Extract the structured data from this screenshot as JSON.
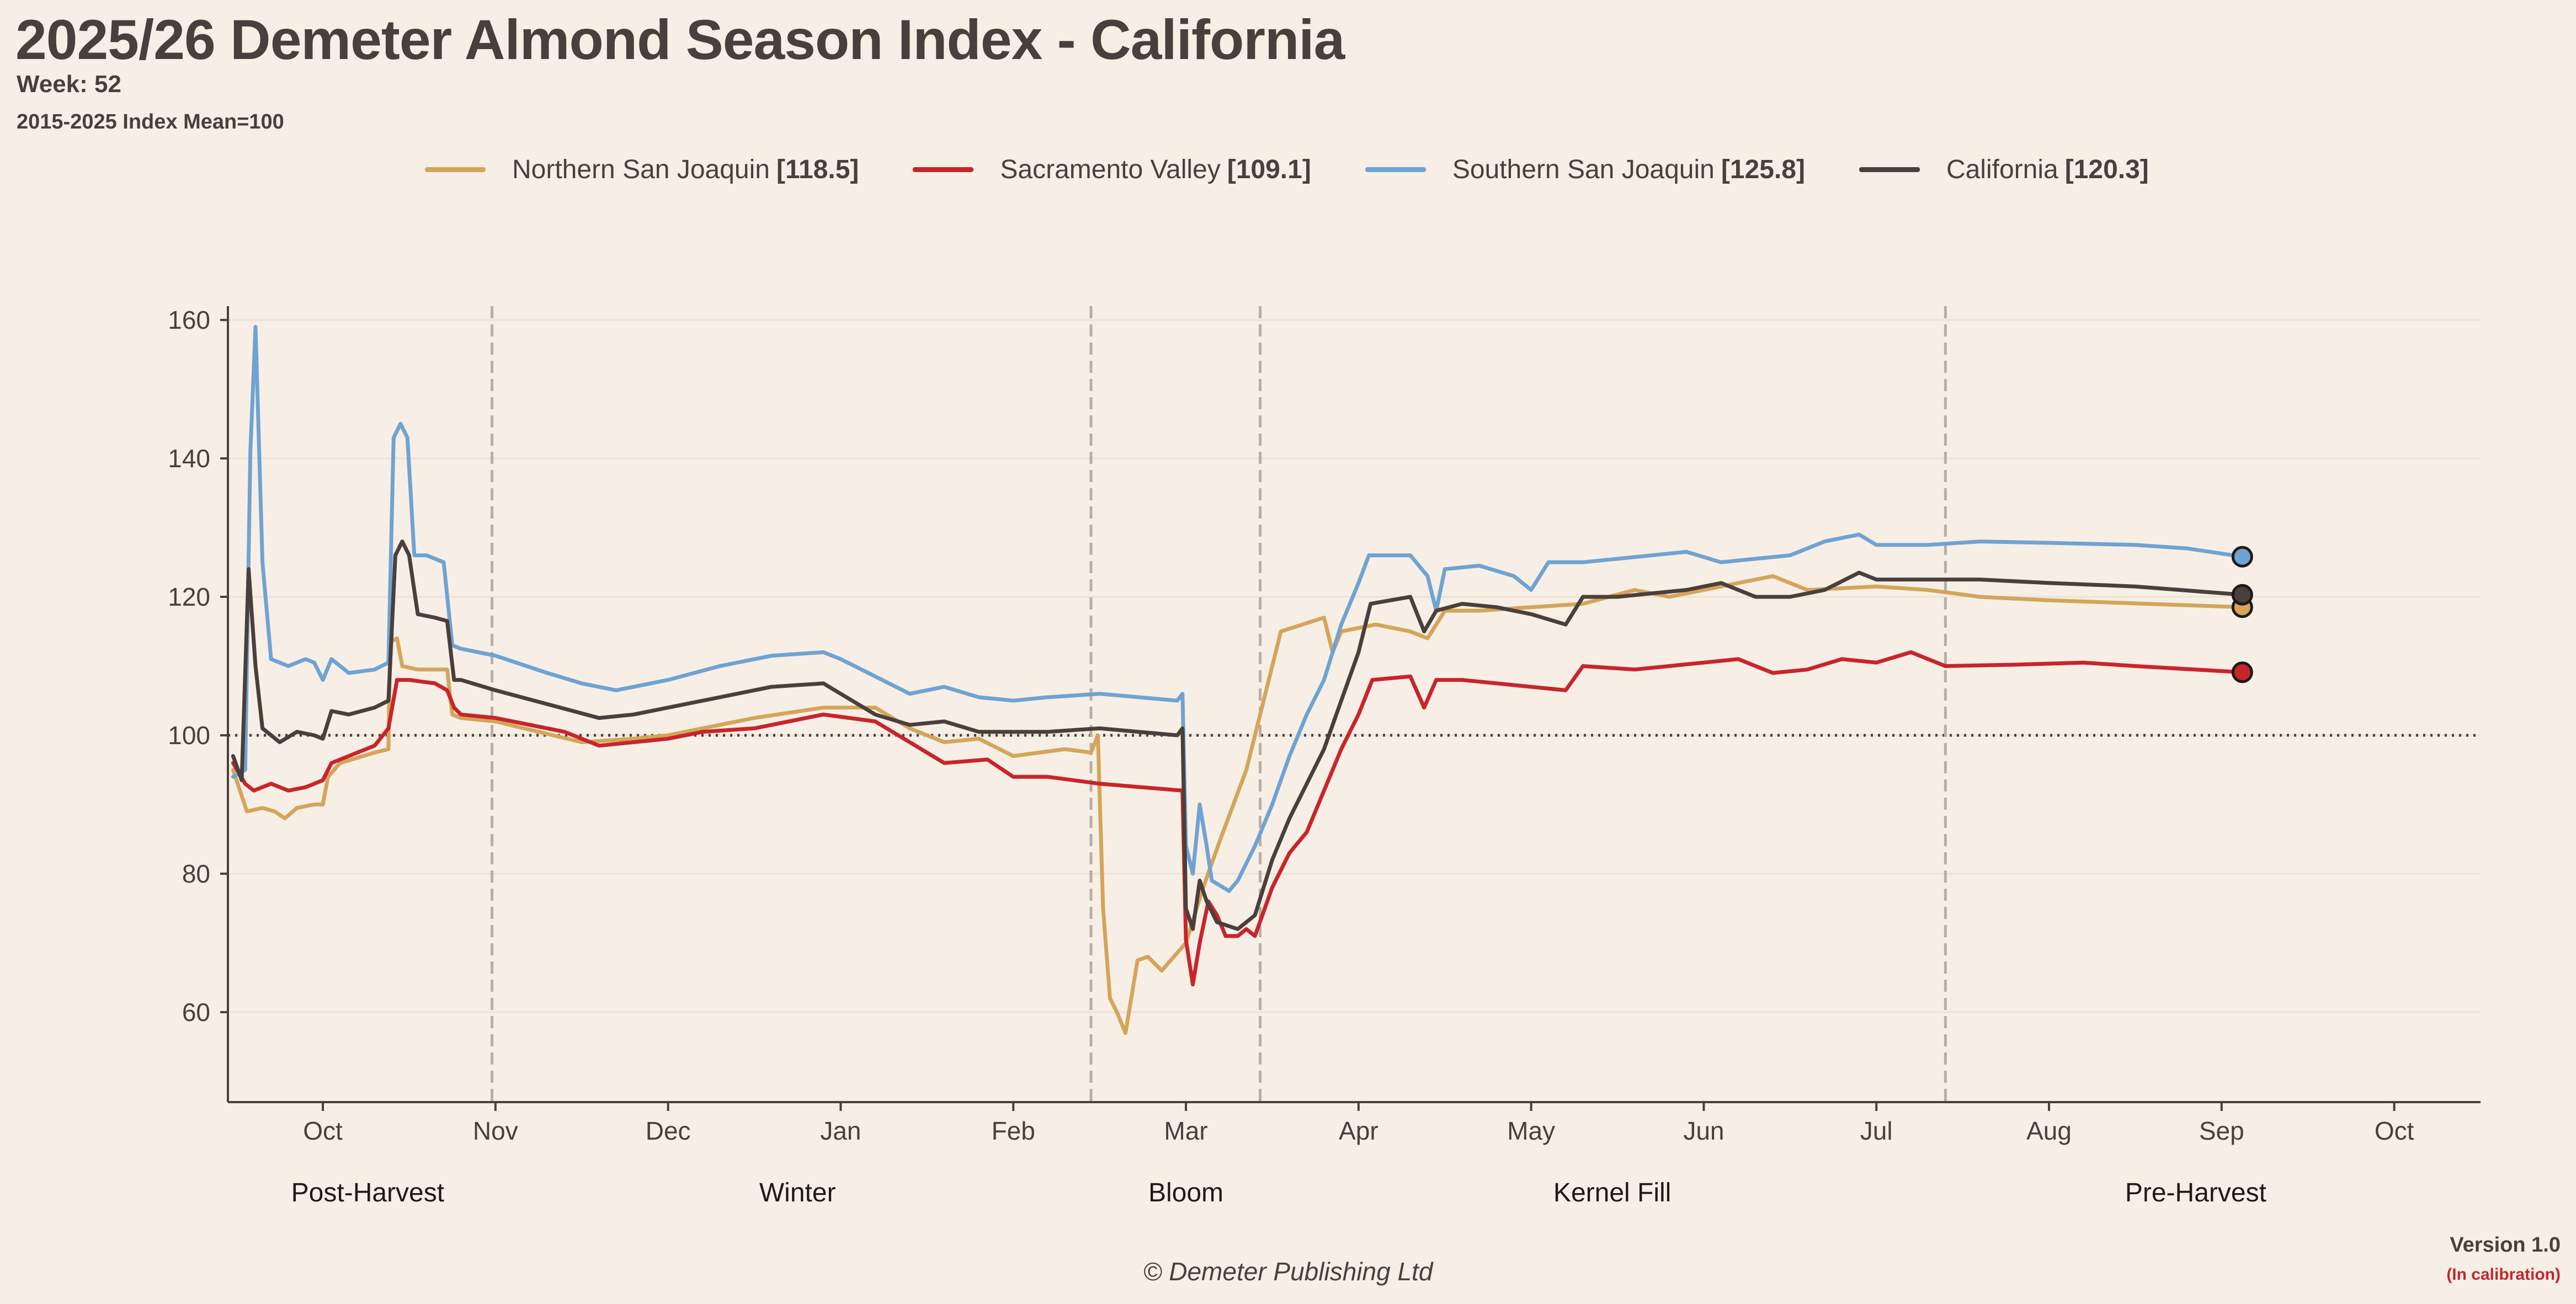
{
  "header": {
    "title": "2025/26 Demeter Almond Season Index - California",
    "week": "Week: 52",
    "baseline": "2015-2025 Index Mean=100"
  },
  "footer": {
    "copyright": "© Demeter Publishing Ltd",
    "version": "Version 1.0",
    "status": "(In calibration)"
  },
  "legend": [
    {
      "label": "Northern San Joaquin",
      "value": "[118.5]",
      "color": "#d4a55a"
    },
    {
      "label": "Sacramento Valley",
      "value": "[109.1]",
      "color": "#c8252b"
    },
    {
      "label": "Southern San Joaquin",
      "value": "[125.8]",
      "color": "#6fa3d3"
    },
    {
      "label": "California",
      "value": "[120.3]",
      "color": "#4a3f3c"
    }
  ],
  "chart_data": {
    "type": "line",
    "ylim": [
      47,
      162
    ],
    "y_ticks": [
      60,
      80,
      100,
      120,
      140,
      160
    ],
    "x_domain": [
      -0.55,
      12.5
    ],
    "x_tick_labels": [
      "Oct",
      "Nov",
      "Dec",
      "Jan",
      "Feb",
      "Mar",
      "Apr",
      "May",
      "Jun",
      "Jul",
      "Aug",
      "Sep",
      "Oct"
    ],
    "reference_line": 100,
    "phase_boundaries": [
      0.98,
      4.45,
      5.43,
      9.4
    ],
    "phases": [
      {
        "label": "Post-Harvest",
        "center": 0.26
      },
      {
        "label": "Winter",
        "center": 2.75
      },
      {
        "label": "Bloom",
        "center": 5.0
      },
      {
        "label": "Kernel Fill",
        "center": 7.47
      },
      {
        "label": "Pre-Harvest",
        "center": 10.85
      }
    ],
    "grid": true,
    "series": [
      {
        "name": "Northern San Joaquin",
        "color": "#d4a55a",
        "points": [
          [
            -0.52,
            95
          ],
          [
            -0.44,
            89
          ],
          [
            -0.35,
            89.5
          ],
          [
            -0.28,
            89
          ],
          [
            -0.22,
            88
          ],
          [
            -0.15,
            89.5
          ],
          [
            -0.05,
            90
          ],
          [
            0.0,
            90
          ],
          [
            0.03,
            94
          ],
          [
            0.1,
            96
          ],
          [
            0.3,
            97.5
          ],
          [
            0.38,
            98
          ],
          [
            0.39,
            113.5
          ],
          [
            0.43,
            114
          ],
          [
            0.46,
            110
          ],
          [
            0.55,
            109.5
          ],
          [
            0.65,
            109.5
          ],
          [
            0.72,
            109.5
          ],
          [
            0.75,
            103
          ],
          [
            0.8,
            102.5
          ],
          [
            1.0,
            102
          ],
          [
            1.5,
            99
          ],
          [
            1.8,
            99.5
          ],
          [
            2.0,
            100
          ],
          [
            2.2,
            101
          ],
          [
            2.5,
            102.5
          ],
          [
            2.9,
            104
          ],
          [
            3.2,
            104
          ],
          [
            3.4,
            101
          ],
          [
            3.6,
            99
          ],
          [
            3.8,
            99.5
          ],
          [
            4.0,
            97
          ],
          [
            4.3,
            98
          ],
          [
            4.45,
            97.5
          ],
          [
            4.49,
            100
          ],
          [
            4.52,
            75
          ],
          [
            4.56,
            62
          ],
          [
            4.6,
            60
          ],
          [
            4.65,
            57
          ],
          [
            4.72,
            67.5
          ],
          [
            4.78,
            68
          ],
          [
            4.86,
            66
          ],
          [
            5.0,
            70
          ],
          [
            5.1,
            78
          ],
          [
            5.2,
            85
          ],
          [
            5.35,
            95
          ],
          [
            5.46,
            106
          ],
          [
            5.55,
            115
          ],
          [
            5.8,
            117
          ],
          [
            5.85,
            112
          ],
          [
            5.9,
            115
          ],
          [
            6.1,
            116
          ],
          [
            6.3,
            115
          ],
          [
            6.4,
            114
          ],
          [
            6.5,
            118
          ],
          [
            6.7,
            118
          ],
          [
            7.0,
            118.5
          ],
          [
            7.3,
            119
          ],
          [
            7.6,
            121
          ],
          [
            7.8,
            120
          ],
          [
            8.0,
            121
          ],
          [
            8.2,
            122
          ],
          [
            8.4,
            123
          ],
          [
            8.6,
            121
          ],
          [
            9.0,
            121.5
          ],
          [
            9.3,
            121
          ],
          [
            9.6,
            120
          ],
          [
            10.0,
            119.5
          ],
          [
            11.12,
            118.5
          ]
        ]
      },
      {
        "name": "Sacramento Valley",
        "color": "#c8252b",
        "points": [
          [
            -0.52,
            96
          ],
          [
            -0.45,
            93
          ],
          [
            -0.4,
            92
          ],
          [
            -0.3,
            93
          ],
          [
            -0.2,
            92
          ],
          [
            -0.1,
            92.5
          ],
          [
            0.0,
            93.5
          ],
          [
            0.05,
            96
          ],
          [
            0.15,
            97
          ],
          [
            0.3,
            98.5
          ],
          [
            0.38,
            101
          ],
          [
            0.43,
            108
          ],
          [
            0.5,
            108
          ],
          [
            0.65,
            107.5
          ],
          [
            0.72,
            106.5
          ],
          [
            0.76,
            104
          ],
          [
            0.8,
            103
          ],
          [
            1.0,
            102.5
          ],
          [
            1.4,
            100.5
          ],
          [
            1.6,
            98.5
          ],
          [
            1.8,
            99
          ],
          [
            2.0,
            99.5
          ],
          [
            2.2,
            100.5
          ],
          [
            2.5,
            101
          ],
          [
            2.9,
            103
          ],
          [
            3.2,
            102
          ],
          [
            3.4,
            99
          ],
          [
            3.6,
            96
          ],
          [
            3.85,
            96.5
          ],
          [
            4.0,
            94
          ],
          [
            4.2,
            94
          ],
          [
            4.5,
            93
          ],
          [
            4.98,
            92
          ],
          [
            5.0,
            70.5
          ],
          [
            5.04,
            64
          ],
          [
            5.08,
            70
          ],
          [
            5.13,
            76
          ],
          [
            5.18,
            74
          ],
          [
            5.23,
            71
          ],
          [
            5.3,
            71
          ],
          [
            5.35,
            72
          ],
          [
            5.4,
            71
          ],
          [
            5.5,
            78
          ],
          [
            5.6,
            83
          ],
          [
            5.7,
            86
          ],
          [
            5.8,
            92
          ],
          [
            5.9,
            98
          ],
          [
            6.0,
            103
          ],
          [
            6.08,
            108
          ],
          [
            6.3,
            108.5
          ],
          [
            6.38,
            104
          ],
          [
            6.45,
            108
          ],
          [
            6.6,
            108
          ],
          [
            6.8,
            107.5
          ],
          [
            7.0,
            107
          ],
          [
            7.2,
            106.5
          ],
          [
            7.3,
            110
          ],
          [
            7.6,
            109.5
          ],
          [
            8.0,
            110.5
          ],
          [
            8.2,
            111
          ],
          [
            8.4,
            109
          ],
          [
            8.6,
            109.5
          ],
          [
            8.8,
            111
          ],
          [
            9.0,
            110.5
          ],
          [
            9.2,
            112
          ],
          [
            9.4,
            110
          ],
          [
            9.8,
            110.2
          ],
          [
            10.2,
            110.5
          ],
          [
            10.5,
            110
          ],
          [
            11.12,
            109.1
          ]
        ]
      },
      {
        "name": "Southern San Joaquin",
        "color": "#6fa3d3",
        "points": [
          [
            -0.52,
            94
          ],
          [
            -0.45,
            95
          ],
          [
            -0.42,
            141
          ],
          [
            -0.39,
            159
          ],
          [
            -0.35,
            125
          ],
          [
            -0.3,
            111
          ],
          [
            -0.2,
            110
          ],
          [
            -0.1,
            111
          ],
          [
            -0.05,
            110.5
          ],
          [
            0.0,
            108
          ],
          [
            0.05,
            111
          ],
          [
            0.15,
            109
          ],
          [
            0.3,
            109.5
          ],
          [
            0.38,
            110.5
          ],
          [
            0.41,
            143
          ],
          [
            0.45,
            145
          ],
          [
            0.49,
            143
          ],
          [
            0.53,
            126
          ],
          [
            0.6,
            126
          ],
          [
            0.7,
            125
          ],
          [
            0.75,
            113
          ],
          [
            0.8,
            112.5
          ],
          [
            1.0,
            111.5
          ],
          [
            1.3,
            109
          ],
          [
            1.5,
            107.5
          ],
          [
            1.7,
            106.5
          ],
          [
            2.0,
            108
          ],
          [
            2.3,
            110
          ],
          [
            2.6,
            111.5
          ],
          [
            2.9,
            112
          ],
          [
            3.0,
            111
          ],
          [
            3.2,
            108.5
          ],
          [
            3.4,
            106
          ],
          [
            3.6,
            107
          ],
          [
            3.8,
            105.5
          ],
          [
            4.0,
            105
          ],
          [
            4.2,
            105.5
          ],
          [
            4.5,
            106
          ],
          [
            4.95,
            105
          ],
          [
            4.98,
            106
          ],
          [
            5.0,
            84
          ],
          [
            5.04,
            80
          ],
          [
            5.08,
            90
          ],
          [
            5.12,
            84
          ],
          [
            5.15,
            79
          ],
          [
            5.25,
            77.5
          ],
          [
            5.3,
            79
          ],
          [
            5.4,
            84
          ],
          [
            5.5,
            90
          ],
          [
            5.6,
            97
          ],
          [
            5.7,
            103
          ],
          [
            5.8,
            108
          ],
          [
            5.9,
            116
          ],
          [
            6.0,
            122
          ],
          [
            6.06,
            126
          ],
          [
            6.3,
            126
          ],
          [
            6.4,
            123
          ],
          [
            6.45,
            118
          ],
          [
            6.5,
            124
          ],
          [
            6.7,
            124.5
          ],
          [
            6.9,
            123
          ],
          [
            7.0,
            121
          ],
          [
            7.1,
            125
          ],
          [
            7.3,
            125
          ],
          [
            7.5,
            125.5
          ],
          [
            7.7,
            126
          ],
          [
            7.9,
            126.5
          ],
          [
            8.1,
            125
          ],
          [
            8.3,
            125.5
          ],
          [
            8.5,
            126
          ],
          [
            8.7,
            128
          ],
          [
            8.9,
            129
          ],
          [
            9.0,
            127.5
          ],
          [
            9.3,
            127.5
          ],
          [
            9.6,
            128
          ],
          [
            10.0,
            127.8
          ],
          [
            10.5,
            127.5
          ],
          [
            10.8,
            127
          ],
          [
            11.12,
            125.8
          ]
        ]
      },
      {
        "name": "California",
        "color": "#4a3f3c",
        "points": [
          [
            -0.52,
            97
          ],
          [
            -0.47,
            93.5
          ],
          [
            -0.43,
            124
          ],
          [
            -0.39,
            110
          ],
          [
            -0.35,
            101
          ],
          [
            -0.25,
            99
          ],
          [
            -0.15,
            100.5
          ],
          [
            -0.05,
            100
          ],
          [
            0.0,
            99.5
          ],
          [
            0.05,
            103.5
          ],
          [
            0.15,
            103
          ],
          [
            0.3,
            104
          ],
          [
            0.38,
            105
          ],
          [
            0.42,
            126
          ],
          [
            0.46,
            128
          ],
          [
            0.5,
            126
          ],
          [
            0.55,
            117.5
          ],
          [
            0.65,
            117
          ],
          [
            0.72,
            116.5
          ],
          [
            0.76,
            108
          ],
          [
            0.8,
            108
          ],
          [
            1.0,
            106.5
          ],
          [
            1.3,
            104.5
          ],
          [
            1.6,
            102.5
          ],
          [
            1.8,
            103
          ],
          [
            2.0,
            104
          ],
          [
            2.3,
            105.5
          ],
          [
            2.6,
            107
          ],
          [
            2.9,
            107.5
          ],
          [
            3.0,
            106
          ],
          [
            3.2,
            103
          ],
          [
            3.4,
            101.5
          ],
          [
            3.6,
            102
          ],
          [
            3.8,
            100.5
          ],
          [
            4.0,
            100.5
          ],
          [
            4.2,
            100.5
          ],
          [
            4.5,
            101
          ],
          [
            4.95,
            100
          ],
          [
            4.98,
            101
          ],
          [
            5.0,
            75
          ],
          [
            5.04,
            72
          ],
          [
            5.08,
            79
          ],
          [
            5.12,
            76
          ],
          [
            5.18,
            73
          ],
          [
            5.3,
            72
          ],
          [
            5.4,
            74
          ],
          [
            5.5,
            82
          ],
          [
            5.6,
            88
          ],
          [
            5.7,
            93
          ],
          [
            5.8,
            98
          ],
          [
            5.9,
            105
          ],
          [
            6.0,
            112
          ],
          [
            6.07,
            119
          ],
          [
            6.3,
            120
          ],
          [
            6.38,
            115
          ],
          [
            6.45,
            118
          ],
          [
            6.6,
            119
          ],
          [
            6.8,
            118.5
          ],
          [
            7.0,
            117.5
          ],
          [
            7.2,
            116
          ],
          [
            7.3,
            120
          ],
          [
            7.5,
            120
          ],
          [
            7.7,
            120.5
          ],
          [
            7.9,
            121
          ],
          [
            8.1,
            122
          ],
          [
            8.3,
            120
          ],
          [
            8.5,
            120
          ],
          [
            8.7,
            121
          ],
          [
            8.9,
            123.5
          ],
          [
            9.0,
            122.5
          ],
          [
            9.3,
            122.5
          ],
          [
            9.6,
            122.5
          ],
          [
            10.0,
            122
          ],
          [
            10.5,
            121.5
          ],
          [
            11.12,
            120.3
          ]
        ]
      }
    ]
  }
}
